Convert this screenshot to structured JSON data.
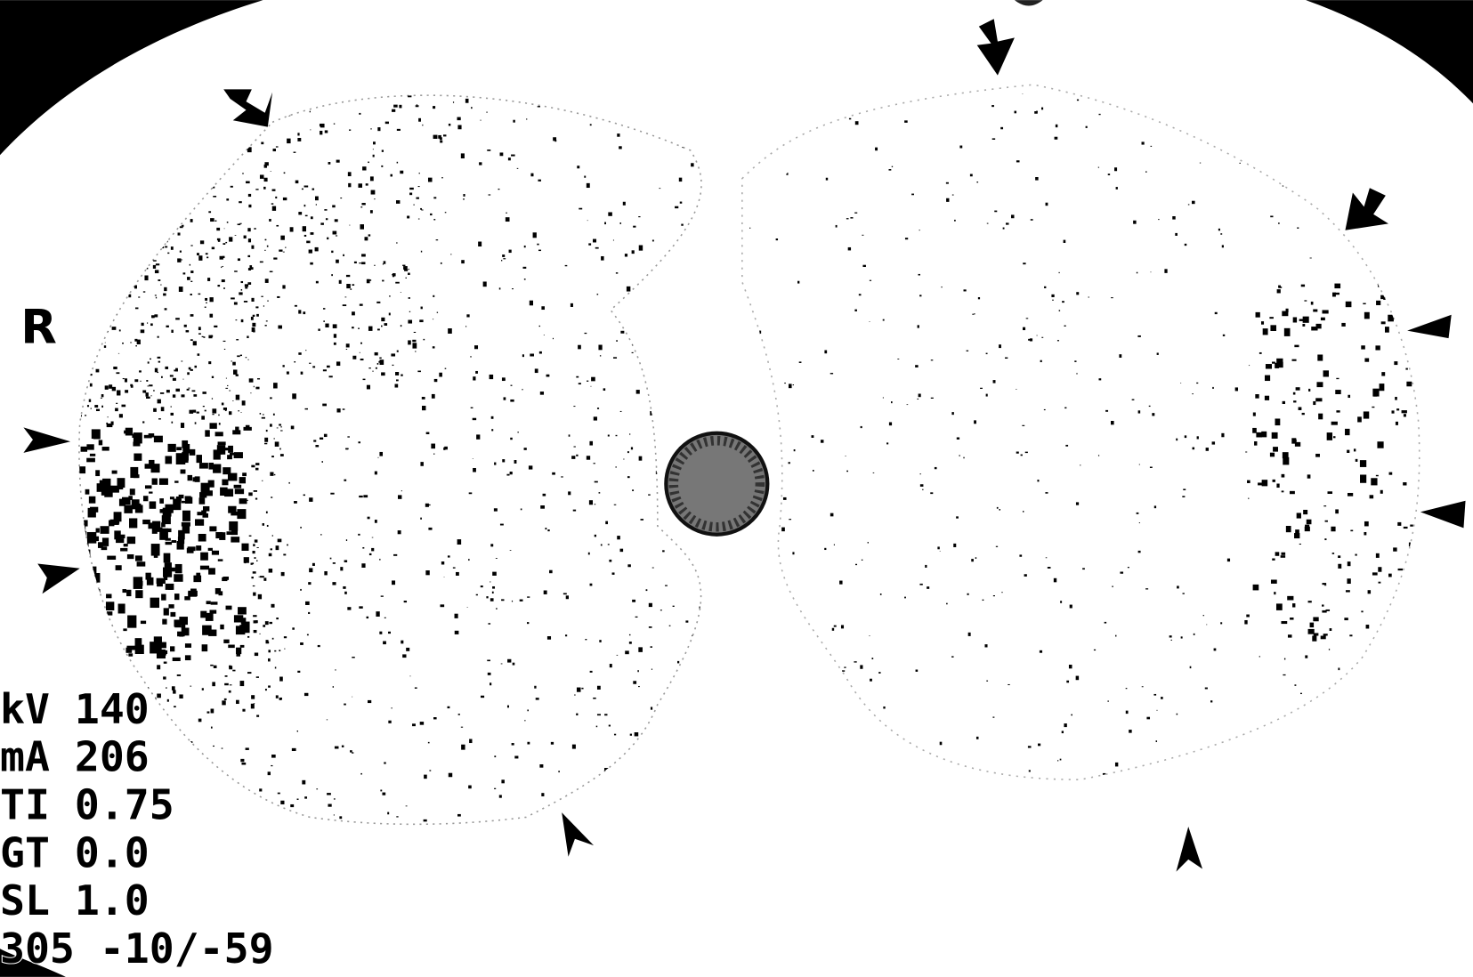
{
  "orientation_label": "R",
  "scan_parameters": [
    "kV 140",
    "mA 206",
    "TI 0.75",
    "GT 0.0",
    "SL 1.0",
    "305 -10/-59"
  ]
}
